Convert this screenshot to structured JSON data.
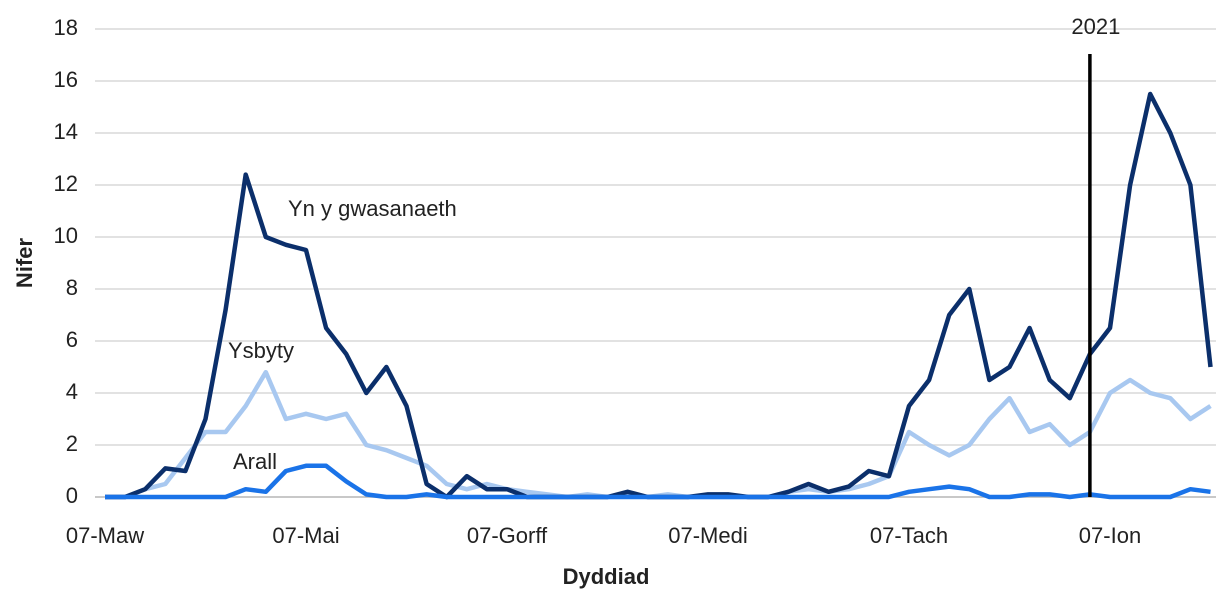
{
  "chart_data": {
    "type": "line",
    "xlabel": "Dyddiad",
    "ylabel": "Nifer",
    "categories": [
      "07-Maw",
      null,
      null,
      null,
      null,
      null,
      null,
      null,
      null,
      null,
      "07-Mai",
      null,
      null,
      null,
      null,
      null,
      null,
      null,
      null,
      null,
      "07-Gorff",
      null,
      null,
      null,
      null,
      null,
      null,
      null,
      null,
      null,
      "07-Medi",
      null,
      null,
      null,
      null,
      null,
      null,
      null,
      null,
      null,
      "07-Tach",
      null,
      null,
      null,
      null,
      null,
      null,
      null,
      null,
      null,
      "07-Ion",
      null,
      null,
      null,
      null,
      null
    ],
    "series": [
      {
        "name": "Yn y gwasanaeth",
        "color": "#0b2f6b",
        "values": [
          0,
          0,
          0.3,
          1.1,
          1,
          3,
          7.2,
          12.4,
          10,
          9.7,
          9.5,
          6.5,
          5.5,
          4,
          5,
          3.5,
          0.5,
          0,
          0.8,
          0.3,
          0.3,
          0,
          0,
          0,
          0,
          0,
          0.2,
          0,
          0,
          0,
          0.1,
          0.1,
          0,
          0,
          0.2,
          0.5,
          0.2,
          0.4,
          1,
          0.8,
          3.5,
          4.5,
          7,
          8,
          4.5,
          5,
          6.5,
          4.5,
          3.8,
          5.5,
          6.5,
          12,
          15.5,
          14,
          12,
          5
        ]
      },
      {
        "name": "Ysbyty",
        "color": "#a8c8f0",
        "values": [
          0,
          0,
          0.3,
          0.5,
          1.5,
          2.5,
          2.5,
          3.5,
          4.8,
          3,
          3.2,
          3,
          3.2,
          2,
          1.8,
          1.5,
          1.2,
          0.5,
          0.3,
          0.5,
          0.3,
          0.2,
          0.1,
          0,
          0.1,
          0,
          0.1,
          0,
          0.1,
          0,
          0,
          0,
          0,
          0,
          0.2,
          0.3,
          0.2,
          0.3,
          0.5,
          0.8,
          2.5,
          2,
          1.6,
          2,
          3,
          3.8,
          2.5,
          2.8,
          2,
          2.5,
          4,
          4.5,
          4,
          3.8,
          3,
          3.5
        ]
      },
      {
        "name": "Arall",
        "color": "#1a73e8",
        "values": [
          0,
          0,
          0,
          0,
          0,
          0,
          0,
          0.3,
          0.2,
          1,
          1.2,
          1.2,
          0.6,
          0.1,
          0,
          0,
          0.1,
          0,
          0,
          0,
          0,
          0,
          0,
          0,
          0,
          0,
          0,
          0,
          0,
          0,
          0,
          0,
          0,
          0,
          0,
          0,
          0,
          0,
          0,
          0,
          0.2,
          0.3,
          0.4,
          0.3,
          0,
          0,
          0.1,
          0.1,
          0,
          0.1,
          0,
          0,
          0,
          0,
          0.3,
          0.2
        ]
      }
    ],
    "annotations": [
      {
        "text": "2021",
        "at": 49
      }
    ],
    "ylim": [
      0,
      18
    ],
    "yticks": [
      0,
      2,
      4,
      6,
      8,
      10,
      12,
      14,
      16,
      18
    ],
    "grid": true
  }
}
